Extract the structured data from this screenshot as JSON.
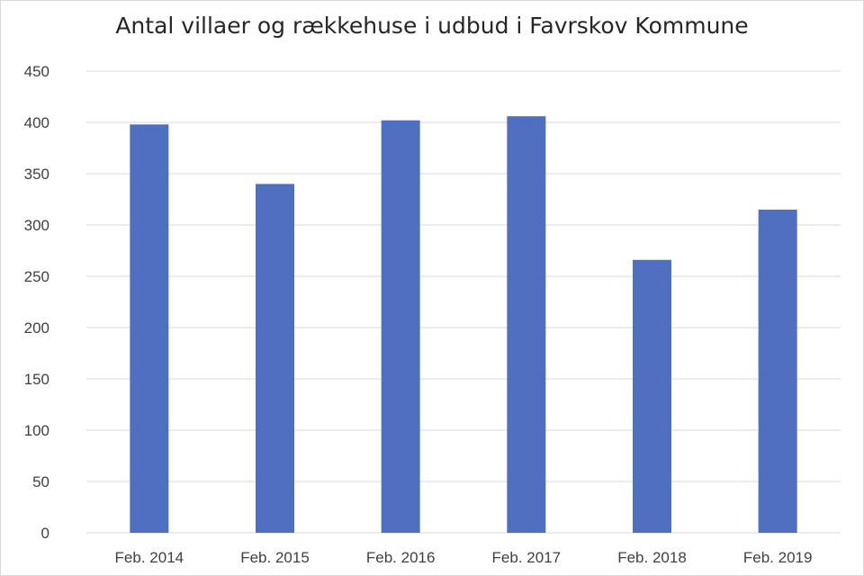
{
  "chart_data": {
    "type": "bar",
    "title": "Antal villaer og rækkehuse  i udbud i Favrskov Kommune",
    "xlabel": "",
    "ylabel": "",
    "categories": [
      "Feb. 2014",
      "Feb. 2015",
      "Feb. 2016",
      "Feb. 2017",
      "Feb. 2018",
      "Feb. 2019"
    ],
    "values": [
      398,
      340,
      402,
      406,
      266,
      315
    ],
    "ylim": [
      0,
      450
    ],
    "yticks": [
      0,
      50,
      100,
      150,
      200,
      250,
      300,
      350,
      400,
      450
    ],
    "grid": true,
    "legend": "none",
    "bar_color": "#4f6fc0"
  }
}
